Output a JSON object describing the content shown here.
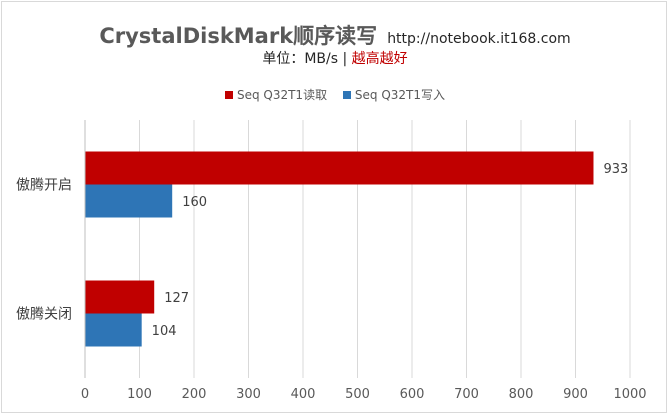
{
  "chart_data": {
    "type": "bar",
    "orientation": "horizontal",
    "title": "CrystalDiskMark顺序读写",
    "title_url": "http://notebook.it168.com",
    "subtitle_prefix": "单位：MB/s | ",
    "subtitle_accent": "越高越好",
    "categories": [
      "傲腾开启",
      "傲腾关闭"
    ],
    "series": [
      {
        "name": "Seq Q32T1读取",
        "color": "#c00000",
        "values": [
          933,
          127
        ]
      },
      {
        "name": "Seq Q32T1写入",
        "color": "#2e75b6",
        "values": [
          160,
          104
        ]
      }
    ],
    "xlim": [
      0,
      1000
    ],
    "xticks": [
      "0",
      "100",
      "200",
      "300",
      "400",
      "500",
      "600",
      "700",
      "800",
      "900",
      "1000"
    ],
    "grid": true,
    "legend_position": "top"
  }
}
